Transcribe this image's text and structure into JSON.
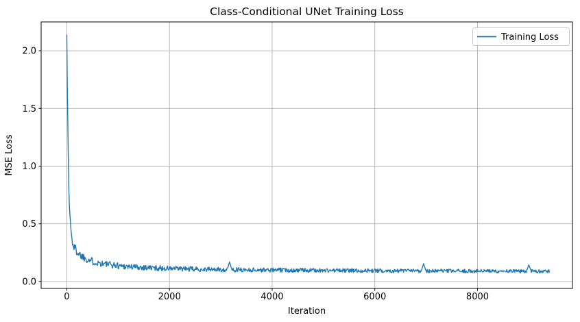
{
  "chart_data": {
    "type": "line",
    "title": "Class-Conditional UNet Training Loss",
    "xlabel": "Iteration",
    "ylabel": "MSE Loss",
    "x_ticks": [
      0,
      2000,
      4000,
      6000,
      8000
    ],
    "x_tick_labels": [
      "0",
      "2000",
      "4000",
      "6000",
      "8000"
    ],
    "y_ticks": [
      0.0,
      0.5,
      1.0,
      1.5,
      2.0
    ],
    "y_tick_labels": [
      "0.0",
      "0.5",
      "1.0",
      "1.5",
      "2.0"
    ],
    "xlim": [
      -500,
      9850
    ],
    "ylim": [
      -0.06,
      2.25
    ],
    "grid": true,
    "grid_color": "#b0b0b0",
    "spine_color": "#000000",
    "tick_color": "#000000",
    "text_color": "#000000",
    "background_color": "#ffffff",
    "line_color": "#1f77b4",
    "legend": {
      "position": "upper-right",
      "entries": [
        {
          "label": "Training Loss",
          "color": "#1f77b4"
        }
      ]
    },
    "series": [
      {
        "name": "Training Loss",
        "x_start": 0,
        "x_end": 9400,
        "sample_step": 10,
        "mean_keypoints": [
          [
            0,
            2.15
          ],
          [
            4,
            2.05
          ],
          [
            8,
            1.85
          ],
          [
            12,
            1.65
          ],
          [
            16,
            1.45
          ],
          [
            20,
            1.3
          ],
          [
            25,
            1.15
          ],
          [
            30,
            1.02
          ],
          [
            40,
            0.82
          ],
          [
            50,
            0.68
          ],
          [
            60,
            0.58
          ],
          [
            80,
            0.45
          ],
          [
            100,
            0.36
          ],
          [
            130,
            0.31
          ],
          [
            160,
            0.285
          ],
          [
            200,
            0.26
          ],
          [
            250,
            0.235
          ],
          [
            300,
            0.22
          ],
          [
            400,
            0.195
          ],
          [
            500,
            0.175
          ],
          [
            600,
            0.163
          ],
          [
            800,
            0.148
          ],
          [
            1000,
            0.138
          ],
          [
            1250,
            0.128
          ],
          [
            1500,
            0.122
          ],
          [
            1750,
            0.117
          ],
          [
            2000,
            0.112
          ],
          [
            2500,
            0.107
          ],
          [
            3000,
            0.103
          ],
          [
            3500,
            0.101
          ],
          [
            4000,
            0.099
          ],
          [
            4500,
            0.098
          ],
          [
            5000,
            0.096
          ],
          [
            5500,
            0.095
          ],
          [
            6000,
            0.094
          ],
          [
            6500,
            0.093
          ],
          [
            7000,
            0.092
          ],
          [
            7500,
            0.091
          ],
          [
            8000,
            0.09
          ],
          [
            8500,
            0.089
          ],
          [
            9000,
            0.089
          ],
          [
            9400,
            0.088
          ]
        ],
        "noise_amplitude_keypoints": [
          [
            0,
            0.02
          ],
          [
            10,
            0.1
          ],
          [
            30,
            0.12
          ],
          [
            60,
            0.06
          ],
          [
            100,
            0.045
          ],
          [
            200,
            0.04
          ],
          [
            400,
            0.035
          ],
          [
            800,
            0.03
          ],
          [
            1500,
            0.025
          ],
          [
            3000,
            0.02
          ],
          [
            6000,
            0.017
          ],
          [
            9400,
            0.015
          ]
        ],
        "spikes": [
          [
            3170,
            0.17
          ],
          [
            6950,
            0.155
          ],
          [
            9000,
            0.145
          ]
        ],
        "spike_halfwidth": 45
      }
    ]
  }
}
